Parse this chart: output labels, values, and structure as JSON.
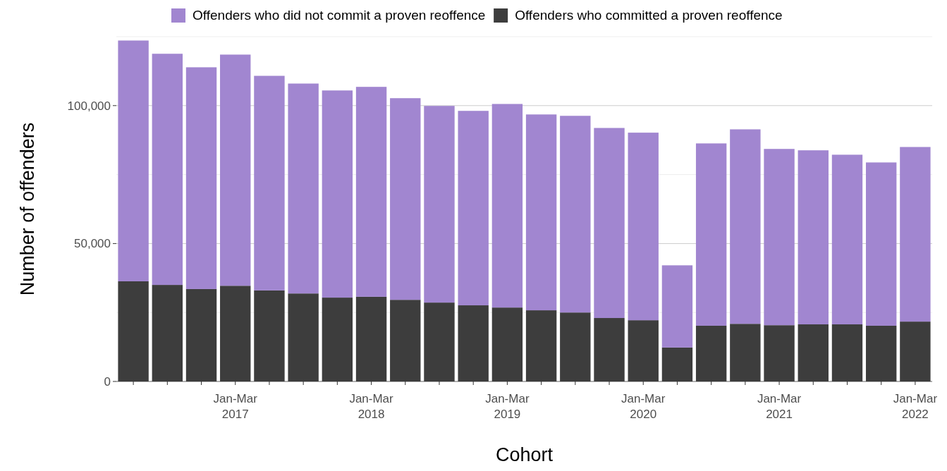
{
  "chart_data": {
    "type": "bar",
    "stacked": true,
    "xlabel": "Cohort",
    "ylabel": "Number of offenders",
    "categories": [
      null,
      null,
      null,
      "Jan-Mar 2017",
      null,
      null,
      null,
      "Jan-Mar 2018",
      null,
      null,
      null,
      "Jan-Mar 2019",
      null,
      null,
      null,
      "Jan-Mar 2020",
      null,
      null,
      null,
      "Jan-Mar 2021",
      null,
      null,
      null,
      "Jan-Mar 2022"
    ],
    "series": [
      {
        "name": "Offenders who committed a proven reoffence",
        "color": "#3d3d3d",
        "values": [
          36300,
          35000,
          33500,
          34700,
          33000,
          31900,
          30400,
          30700,
          29600,
          28600,
          27600,
          26800,
          25800,
          25000,
          23000,
          22200,
          12300,
          20200,
          20900,
          20400,
          20700,
          20700,
          20200,
          21700
        ]
      },
      {
        "name": "Offenders who did not commit a proven reoffence",
        "color": "#a186d0",
        "values": [
          87300,
          83800,
          80400,
          83800,
          77800,
          76100,
          75100,
          76100,
          73100,
          71300,
          70500,
          73800,
          71000,
          71300,
          68900,
          68000,
          29800,
          66100,
          70500,
          63900,
          63100,
          61500,
          59200,
          63300
        ]
      }
    ],
    "ylim": [
      0,
      125000
    ],
    "yticks": [
      {
        "value": 0,
        "label": "0"
      },
      {
        "value": 25000,
        "label": null
      },
      {
        "value": 50000,
        "label": "50,000"
      },
      {
        "value": 75000,
        "label": null
      },
      {
        "value": 100000,
        "label": "100,000"
      },
      {
        "value": 125000,
        "label": null
      }
    ],
    "grid": "y",
    "legend": "top"
  }
}
